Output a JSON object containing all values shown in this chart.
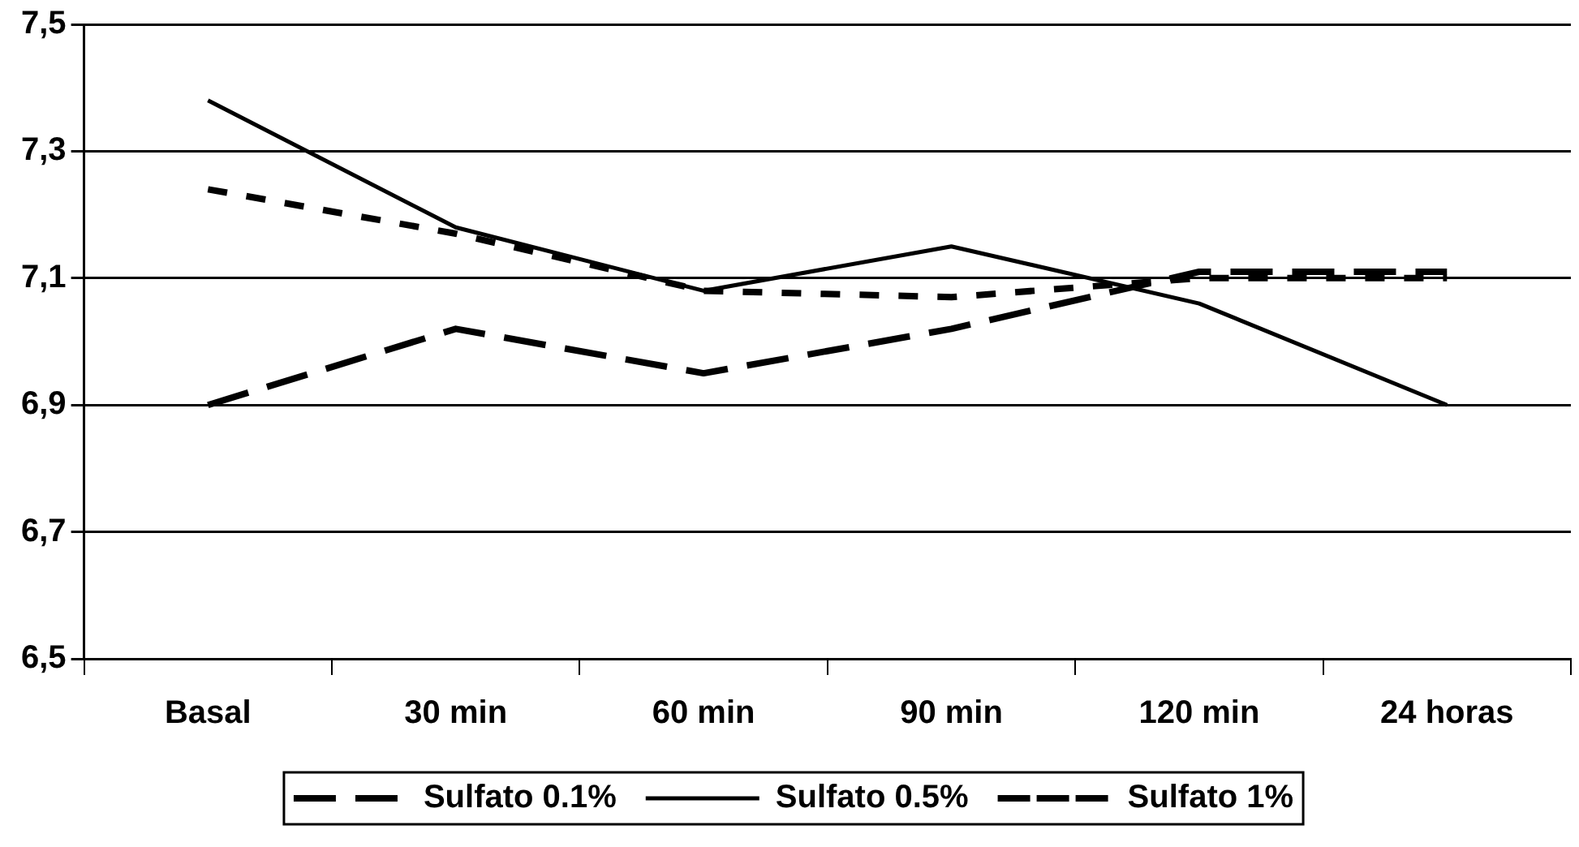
{
  "chart_data": {
    "type": "line",
    "categories": [
      "Basal",
      "30 min",
      "60 min",
      "90 min",
      "120 min",
      "24 horas"
    ],
    "series": [
      {
        "name": "Sulfato 0.1%",
        "color": "#000000",
        "line_style": "dashed",
        "values": [
          6.9,
          7.02,
          6.95,
          7.02,
          7.11,
          7.11
        ]
      },
      {
        "name": "Sulfato 0.5%",
        "color": "#000000",
        "line_style": "solid",
        "values": [
          7.38,
          7.18,
          7.08,
          7.15,
          7.06,
          6.9
        ]
      },
      {
        "name": "Sulfato 1%",
        "color": "#000000",
        "line_style": "dotted",
        "values": [
          7.24,
          7.17,
          7.08,
          7.07,
          7.1,
          7.1
        ]
      }
    ],
    "ylim": [
      6.5,
      7.5
    ],
    "yticks": [
      {
        "value": 6.5,
        "label": "6,5"
      },
      {
        "value": 6.7,
        "label": "6,7"
      },
      {
        "value": 6.9,
        "label": "6,9"
      },
      {
        "value": 7.1,
        "label": "7,1"
      },
      {
        "value": 7.3,
        "label": "7,3"
      },
      {
        "value": 7.5,
        "label": "7,5"
      }
    ],
    "grid": "y",
    "legend": "bottom",
    "marker": "none"
  }
}
